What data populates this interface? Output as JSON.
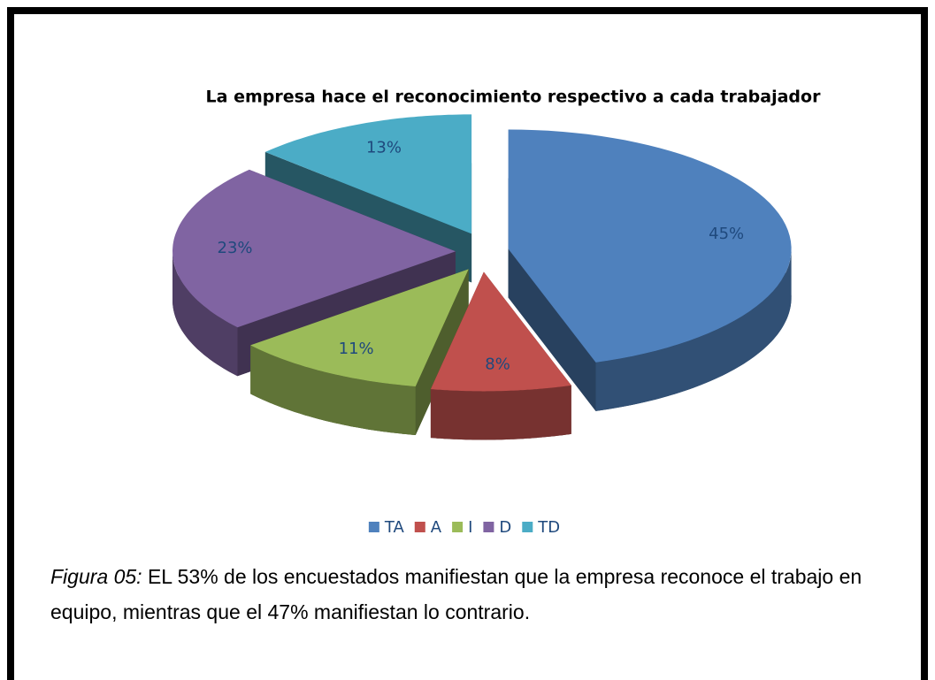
{
  "chart_data": {
    "type": "pie",
    "title": "La empresa hace el reconocimiento respectivo a cada trabajador",
    "categories": [
      "TA",
      "A",
      "I",
      "D",
      "TD"
    ],
    "values": [
      45,
      8,
      11,
      23,
      13
    ],
    "value_labels": [
      "45%",
      "8%",
      "11%",
      "23%",
      "13%"
    ],
    "colors": [
      "#4f81bd",
      "#c0504d",
      "#9bbb59",
      "#8064a2",
      "#4bacc6"
    ],
    "legend": "bottom"
  },
  "caption": {
    "label": "Figura 05:",
    "text": "EL 53% de los encuestados manifiestan que la empresa reconoce el trabajo en equipo, mientras que el 47% manifiestan lo contrario."
  }
}
